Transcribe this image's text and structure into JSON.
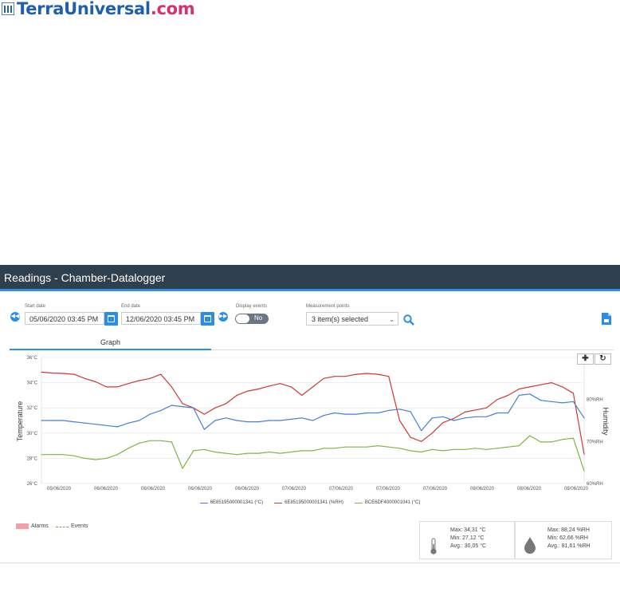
{
  "logo": {
    "part1": "TerraUniversal",
    "part2": ".com"
  },
  "window": {
    "title": "Readings - Chamber-Datalogger"
  },
  "filters": {
    "start_date_label": "Start date",
    "start_date_value": "05/06/2020 03:45 PM",
    "end_date_label": "End date",
    "end_date_value": "12/06/2020 03:45 PM",
    "display_events_label": "Display events",
    "display_events_value": "No",
    "measurement_points_label": "Measurement points",
    "measurement_points_value": "3 item(s) selected"
  },
  "tabs": [
    {
      "label": "Graph",
      "active": true
    }
  ],
  "colors": {
    "header_bg": "#2e3f4d",
    "accent": "#2b8ee6",
    "blue_series": "#4a7fd1",
    "red_series": "#cc3a34",
    "green_series": "#7fb642"
  },
  "legend": {
    "alarms": "Alarms",
    "events": "Events"
  },
  "stats": {
    "temperature": {
      "max": "Max: 34,31 °C",
      "min": "Min: 27,12 °C",
      "avg": "Avg.: 30,05 °C"
    },
    "humidity": {
      "max": "Max: 88,24 %RH",
      "min": "Min: 62,66 %RH",
      "avg": "Avg.: 81,61 %RH"
    }
  },
  "chart_data": {
    "type": "line",
    "ylabel": "Temperature",
    "y2label": "Humidity",
    "yticks": [
      "26°C",
      "28°C",
      "30°C",
      "32°C",
      "34°C",
      "36°C"
    ],
    "ylim": [
      26,
      36
    ],
    "y2ticks": [
      "60%RH",
      "70%RH",
      "80%RH"
    ],
    "y2lim": [
      60,
      90
    ],
    "xticks": [
      "05/06/2020",
      "06/06/2020",
      "06/06/2020",
      "06/06/2020",
      "06/06/2020",
      "07/06/2020",
      "07/06/2020",
      "07/06/2020",
      "07/06/2020",
      "08/06/2020",
      "08/06/2020",
      "08/06/2020"
    ],
    "x": [
      0,
      2,
      4,
      6,
      8,
      10,
      12,
      14,
      16,
      18,
      20,
      22,
      24,
      26,
      28,
      30,
      32,
      34,
      36,
      38,
      40,
      42,
      44,
      46,
      48,
      50,
      52,
      54,
      56,
      58,
      60,
      62,
      64,
      66,
      68,
      70,
      72,
      74,
      76,
      78,
      80,
      82,
      84,
      86,
      88,
      90,
      92,
      94,
      96,
      98,
      100
    ],
    "series": [
      {
        "name": "6E85195000001341 (°C)",
        "axis": "left",
        "values": [
          31.0,
          31.0,
          31.0,
          30.9,
          30.8,
          30.7,
          30.6,
          30.5,
          30.8,
          31.0,
          31.5,
          31.8,
          32.2,
          32.1,
          32.0,
          30.3,
          31.0,
          31.2,
          31.0,
          30.9,
          30.9,
          31.0,
          31.0,
          31.1,
          31.2,
          31.0,
          31.4,
          31.6,
          31.5,
          31.5,
          31.6,
          31.6,
          31.8,
          31.9,
          31.7,
          30.2,
          31.2,
          31.3,
          31.0,
          31.2,
          31.3,
          31.3,
          31.6,
          31.6,
          33.0,
          33.1,
          32.6,
          32.5,
          32.4,
          32.5,
          31.2
        ]
      },
      {
        "name": "6E85195000001341 (%RH)",
        "axis": "right",
        "values": [
          86.5,
          86.3,
          86.2,
          86.0,
          85.0,
          84.2,
          83.0,
          83.0,
          83.8,
          84.5,
          85.0,
          86.0,
          83.0,
          79.0,
          78.0,
          76.5,
          78.0,
          79.0,
          81.0,
          82.0,
          82.5,
          83.2,
          83.8,
          83.0,
          81.0,
          83.0,
          85.0,
          85.5,
          85.5,
          86.0,
          86.2,
          86.0,
          85.5,
          75.0,
          71.0,
          70.0,
          72.0,
          74.5,
          75.5,
          77.0,
          77.5,
          78.0,
          80.0,
          81.0,
          82.5,
          83.0,
          83.5,
          84.0,
          83.0,
          81.5,
          67.0
        ]
      },
      {
        "name": "BCE6DF4000001041 (°C)",
        "axis": "left",
        "values": [
          28.3,
          28.3,
          28.3,
          28.2,
          28.0,
          27.9,
          28.0,
          28.3,
          28.8,
          29.2,
          29.4,
          29.4,
          29.3,
          27.2,
          28.6,
          28.7,
          28.5,
          28.4,
          28.3,
          28.4,
          28.4,
          28.5,
          28.4,
          28.5,
          28.6,
          28.6,
          28.8,
          28.8,
          28.9,
          28.9,
          28.9,
          29.0,
          28.9,
          28.8,
          28.6,
          28.5,
          28.7,
          28.6,
          28.7,
          28.7,
          28.8,
          28.7,
          28.8,
          28.9,
          29.0,
          29.8,
          29.3,
          29.3,
          29.5,
          29.6,
          27.0
        ]
      }
    ]
  }
}
